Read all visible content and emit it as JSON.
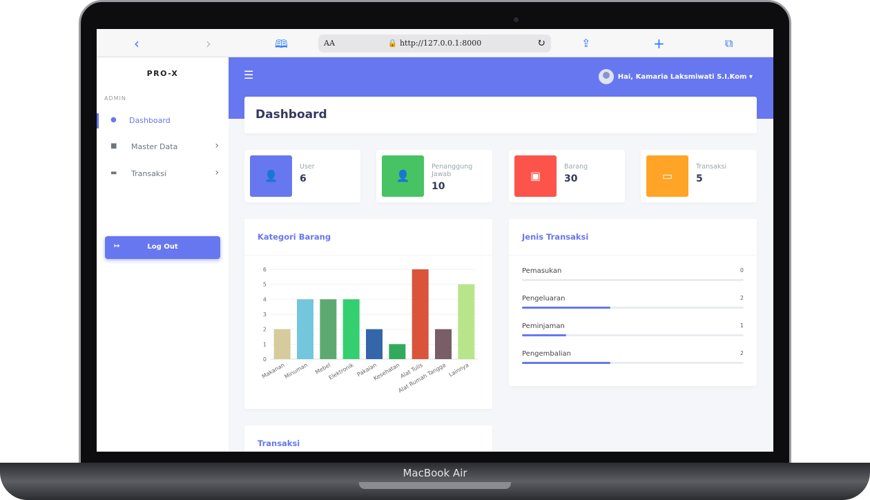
{
  "device_label": "MacBook Air",
  "browser": {
    "reader": "AA",
    "url": "http://127.0.0.1:8000"
  },
  "sidebar": {
    "brand": "PRO-X",
    "section": "ADMIN",
    "items": [
      {
        "label": "Dashboard",
        "icon": "fire-icon",
        "active": true
      },
      {
        "label": "Master Data",
        "icon": "database-icon"
      },
      {
        "label": "Transaksi",
        "icon": "wallet-icon"
      }
    ],
    "logout": "Log Out"
  },
  "header": {
    "user": "Hai, Kamaria Laksmiwati S.I.Kom"
  },
  "page_title": "Dashboard",
  "stats": [
    {
      "label": "User",
      "value": "6",
      "color": "#6777ef",
      "icon": "user-icon"
    },
    {
      "label": "Penanggung Jawab",
      "value": "10",
      "color": "#47c363",
      "icon": "user-tie-icon"
    },
    {
      "label": "Barang",
      "value": "30",
      "color": "#fc544b",
      "icon": "box-icon"
    },
    {
      "label": "Transaksi",
      "value": "5",
      "color": "#ffa426",
      "icon": "wallet-icon"
    }
  ],
  "chart_card_title": "Kategori Barang",
  "chart_data": {
    "type": "bar",
    "categories": [
      "Makanan",
      "Minuman",
      "Mebel",
      "Elektronik",
      "Pakaian",
      "Kesehatan",
      "Alat Tulis",
      "Alat Rumah Tangga",
      "Lainnya"
    ],
    "values": [
      2,
      4,
      4,
      4,
      2,
      1,
      6,
      2,
      5
    ],
    "colors": [
      "#d6cb9c",
      "#74c6dd",
      "#5ea972",
      "#33cf70",
      "#3566a9",
      "#31aa5e",
      "#d9543a",
      "#785e67",
      "#b8e58a"
    ],
    "ylim": [
      0,
      6
    ],
    "yticks": [
      "0",
      "1",
      "2",
      "3",
      "4",
      "5",
      "6"
    ],
    "grid": true
  },
  "jenis": {
    "title": "Jenis Transaksi",
    "items": [
      {
        "label": "Pemasukan",
        "value": "0",
        "percent": 0
      },
      {
        "label": "Pengeluaran",
        "value": "2",
        "percent": 40
      },
      {
        "label": "Peminjaman",
        "value": "1",
        "percent": 20
      },
      {
        "label": "Pengembalian",
        "value": "2",
        "percent": 40
      }
    ]
  },
  "transaksi_title": "Transaksi"
}
